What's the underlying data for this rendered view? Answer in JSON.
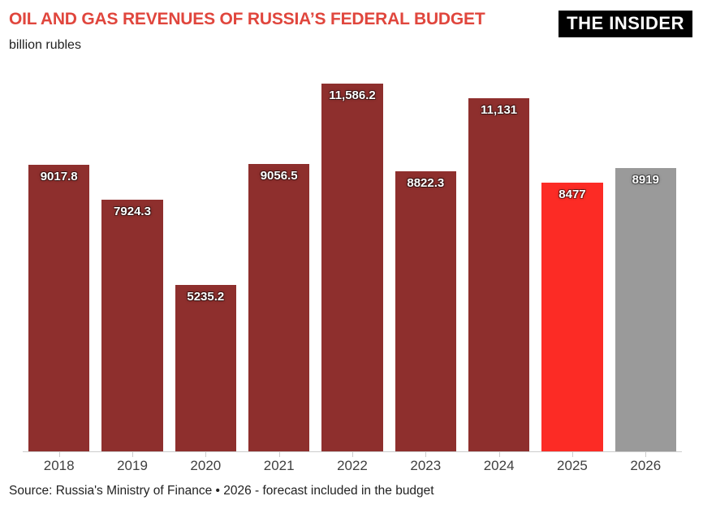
{
  "header": {
    "title": "OIL AND GAS REVENUES OF RUSSIA’S FEDERAL BUDGET",
    "subtitle": "billion rubles",
    "title_color": "#e0463d"
  },
  "logo": {
    "text": "THE INSIDER",
    "background": "#000000",
    "foreground": "#ffffff"
  },
  "chart_data": {
    "type": "bar",
    "title": "OIL AND GAS REVENUES OF RUSSIA’S FEDERAL BUDGET",
    "ylabel": "billion rubles",
    "xlabel": "",
    "categories": [
      "2018",
      "2019",
      "2020",
      "2021",
      "2022",
      "2023",
      "2024",
      "2025",
      "2026"
    ],
    "values": [
      9017.8,
      7924.3,
      5235.2,
      9056.5,
      11586.2,
      8822.3,
      11131,
      8477,
      8919
    ],
    "value_labels": [
      "9017.8",
      "7924.3",
      "5235.2",
      "9056.5",
      "11,586.2",
      "8822.3",
      "11,131",
      "8477",
      "8919"
    ],
    "bar_colors": [
      "#8e2f2d",
      "#8e2f2d",
      "#8e2f2d",
      "#8e2f2d",
      "#8e2f2d",
      "#8e2f2d",
      "#8e2f2d",
      "#fc2b25",
      "#9a9a9a"
    ],
    "ylim": [
      0,
      11586.2
    ],
    "grid": false,
    "legend": "none",
    "value_labels_position": "inside-top",
    "highlight_color": "#fc2b25",
    "forecast_color": "#9a9a9a",
    "axis_color": "#cccccc"
  },
  "footer": {
    "source": "Source: Russia's Ministry of Finance • 2026 - forecast included in the budget"
  }
}
